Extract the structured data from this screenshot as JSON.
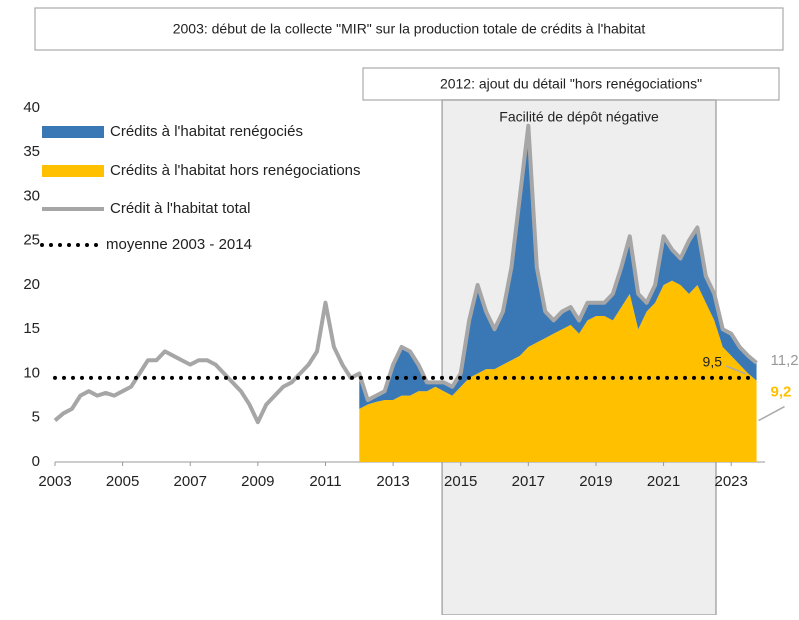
{
  "chart_data": {
    "type": "stacked-area-line",
    "annotations": [
      "2003: début de la collecte \"MIR\" sur la production totale de crédits à l'habitat",
      "2012: ajout du détail \"hors renégociations\""
    ],
    "shade": {
      "label": "Facilité de dépôt négative",
      "x": [
        2014.45,
        2022.55
      ]
    },
    "xlim": [
      2003,
      2024
    ],
    "xticks": [
      2003,
      2005,
      2007,
      2009,
      2011,
      2013,
      2015,
      2017,
      2019,
      2021,
      2023
    ],
    "ylim": [
      0,
      40
    ],
    "yticks": [
      0,
      5,
      10,
      15,
      20,
      25,
      30,
      35,
      40
    ],
    "legend": "top-left",
    "stack_x": [
      2012,
      2012.25,
      2012.5,
      2012.75,
      2013,
      2013.25,
      2013.5,
      2013.75,
      2014,
      2014.25,
      2014.5,
      2014.75,
      2015,
      2015.25,
      2015.5,
      2015.75,
      2016,
      2016.25,
      2016.5,
      2016.75,
      2017,
      2017.25,
      2017.5,
      2017.75,
      2018,
      2018.25,
      2018.5,
      2018.75,
      2019,
      2019.25,
      2019.5,
      2019.75,
      2020,
      2020.25,
      2020.5,
      2020.75,
      2021,
      2021.25,
      2021.5,
      2021.75,
      2022,
      2022.25,
      2022.5,
      2022.75,
      2023,
      2023.25,
      2023.5,
      2023.75
    ],
    "series": [
      {
        "name": "Crédits à l'habitat renégociés",
        "kind": "stack",
        "color": "#3a78b5",
        "values": [
          4,
          0.5,
          0.7,
          1,
          4,
          5.5,
          5,
          3,
          1,
          0.5,
          1,
          1,
          1.5,
          6.5,
          10,
          6.5,
          4.5,
          6,
          10.5,
          18,
          25,
          8.5,
          3,
          1.5,
          2,
          2,
          1.5,
          2,
          1.5,
          1.5,
          3,
          4.5,
          6.5,
          4,
          1,
          2,
          5.5,
          3.5,
          3,
          6,
          6.5,
          3,
          3,
          2,
          2.5,
          2,
          2,
          2
        ]
      },
      {
        "name": "Crédits à l'habitat hors renégociations",
        "kind": "stack",
        "color": "#ffc000",
        "end_label": "9,2",
        "values": [
          6,
          6.5,
          6.8,
          7,
          7,
          7.5,
          7.5,
          8,
          8,
          8.5,
          8,
          7.5,
          8.5,
          9.5,
          10,
          10.5,
          10.5,
          11,
          11.5,
          12,
          13,
          13.5,
          14,
          14.5,
          15,
          15.5,
          14.5,
          16,
          16.5,
          16.5,
          16,
          17.5,
          19,
          15,
          17,
          18,
          20,
          20.5,
          20,
          19,
          20,
          18,
          16,
          13,
          12,
          11,
          10,
          9.2
        ]
      },
      {
        "name": "Crédit à l'habitat total",
        "kind": "line",
        "color": "#a6a6a6",
        "end_label": "11,2",
        "x": [
          2003,
          2003.25,
          2003.5,
          2003.75,
          2004,
          2004.25,
          2004.5,
          2004.75,
          2005,
          2005.25,
          2005.5,
          2005.75,
          2006,
          2006.25,
          2006.5,
          2006.75,
          2007,
          2007.25,
          2007.5,
          2007.75,
          2008,
          2008.25,
          2008.5,
          2008.75,
          2009,
          2009.25,
          2009.5,
          2009.75,
          2010,
          2010.25,
          2010.5,
          2010.75,
          2011,
          2011.25,
          2011.5,
          2011.75,
          2012,
          2012.25,
          2012.5,
          2012.75,
          2013,
          2013.25,
          2013.5,
          2013.75,
          2014,
          2014.25,
          2014.5,
          2014.75,
          2015,
          2015.25,
          2015.5,
          2015.75,
          2016,
          2016.25,
          2016.5,
          2016.75,
          2017,
          2017.25,
          2017.5,
          2017.75,
          2018,
          2018.25,
          2018.5,
          2018.75,
          2019,
          2019.25,
          2019.5,
          2019.75,
          2020,
          2020.25,
          2020.5,
          2020.75,
          2021,
          2021.25,
          2021.5,
          2021.75,
          2022,
          2022.25,
          2022.5,
          2022.75,
          2023,
          2023.25,
          2023.5,
          2023.75
        ],
        "values": [
          4.7,
          5.5,
          6,
          7.5,
          8,
          7.5,
          7.8,
          7.5,
          8,
          8.5,
          10,
          11.5,
          11.5,
          12.5,
          12,
          11.5,
          11,
          11.5,
          11.5,
          11,
          10,
          9,
          8,
          6.5,
          4.5,
          6.5,
          7.5,
          8.5,
          9,
          10,
          11,
          12.5,
          18,
          13,
          11,
          9.5,
          10,
          7,
          7.5,
          8,
          11,
          13,
          12.5,
          11,
          9,
          9,
          9,
          8.5,
          10,
          16,
          20,
          17,
          15,
          17,
          22,
          30,
          38,
          22,
          17,
          16,
          17,
          17.5,
          16,
          18,
          18,
          18,
          19,
          22,
          25.5,
          19,
          18,
          20,
          25.5,
          24,
          23,
          25,
          26.5,
          21,
          19,
          15,
          14.5,
          13,
          12,
          11.2
        ]
      },
      {
        "name": "moyenne 2003 - 2014",
        "kind": "mean",
        "color": "#000000",
        "value": 9.5,
        "value_label": "9,5"
      }
    ]
  }
}
